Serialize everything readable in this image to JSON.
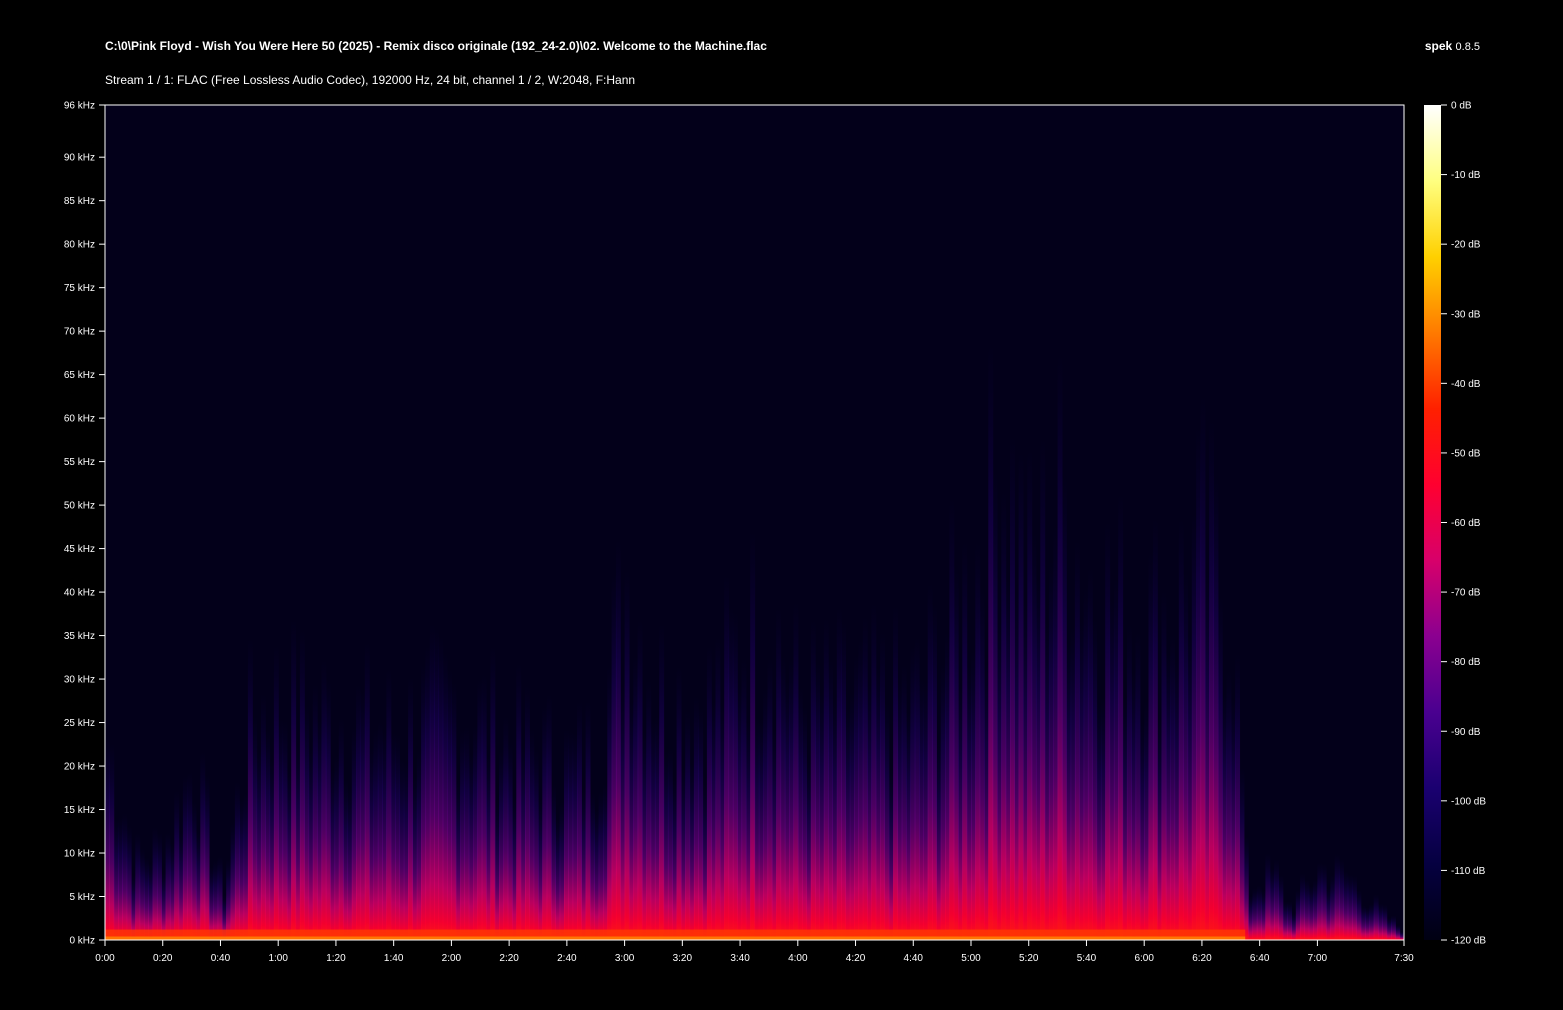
{
  "header": {
    "file_path": "C:\\0\\Pink Floyd - Wish You Were Here 50 (2025) - Remix disco originale (192_24-2.0)\\02. Welcome to the Machine.flac",
    "stream_info": "Stream 1 / 1: FLAC (Free Lossless Audio Codec), 192000 Hz, 24 bit, channel 1 / 2, W:2048, F:Hann",
    "app_name": "spek",
    "app_version": "0.8.5"
  },
  "colors": {
    "background": "#000000",
    "plot_base": "#03001a",
    "axis": "#ffffff"
  },
  "chart_data": {
    "type": "heatmap",
    "x_axis": {
      "range_seconds": [
        0,
        450
      ],
      "ticks": [
        "0:00",
        "0:20",
        "0:40",
        "1:00",
        "1:20",
        "1:40",
        "2:00",
        "2:20",
        "2:40",
        "3:00",
        "3:20",
        "3:40",
        "4:00",
        "4:20",
        "4:40",
        "5:00",
        "5:20",
        "5:40",
        "6:00",
        "6:20",
        "6:40",
        "7:00",
        "7:30"
      ],
      "tick_seconds": [
        0,
        20,
        40,
        60,
        80,
        100,
        120,
        140,
        160,
        180,
        200,
        220,
        240,
        260,
        280,
        300,
        320,
        340,
        360,
        380,
        400,
        420,
        450
      ]
    },
    "y_axis": {
      "range_khz": [
        0,
        96
      ],
      "ticks": [
        "0 kHz",
        "5 kHz",
        "10 kHz",
        "15 kHz",
        "20 kHz",
        "25 kHz",
        "30 kHz",
        "35 kHz",
        "40 kHz",
        "45 kHz",
        "50 kHz",
        "55 kHz",
        "60 kHz",
        "65 kHz",
        "70 kHz",
        "75 kHz",
        "80 kHz",
        "85 kHz",
        "90 kHz",
        "96 kHz"
      ],
      "tick_khz": [
        0,
        5,
        10,
        15,
        20,
        25,
        30,
        35,
        40,
        45,
        50,
        55,
        60,
        65,
        70,
        75,
        80,
        85,
        90,
        96
      ]
    },
    "color_scale": {
      "range_db": [
        -120,
        0
      ],
      "ticks": [
        "0 dB",
        "-10 dB",
        "-20 dB",
        "-30 dB",
        "-40 dB",
        "-50 dB",
        "-60 dB",
        "-70 dB",
        "-80 dB",
        "-90 dB",
        "-100 dB",
        "-110 dB",
        "-120 dB"
      ],
      "tick_db": [
        0,
        -10,
        -20,
        -30,
        -40,
        -50,
        -60,
        -70,
        -80,
        -90,
        -100,
        -110,
        -120
      ],
      "gradient": [
        "#ffffff",
        "#ffff80",
        "#ffd000",
        "#ff7a00",
        "#ff2000",
        "#ff0030",
        "#d8006a",
        "#8b0090",
        "#4a0090",
        "#1a0070",
        "#050040",
        "#000012"
      ]
    },
    "energy_envelope": {
      "description_points_seconds": [
        0,
        10,
        20,
        30,
        40,
        50,
        60,
        80,
        100,
        120,
        140,
        160,
        170,
        180,
        190,
        200,
        210,
        220,
        230,
        240,
        260,
        280,
        300,
        310,
        320,
        330,
        340,
        350,
        360,
        370,
        380,
        390,
        395,
        400,
        405,
        410,
        420,
        430,
        440,
        450
      ],
      "max_freq_khz": [
        25,
        10,
        12,
        22,
        6,
        28,
        30,
        28,
        26,
        30,
        25,
        22,
        24,
        45,
        32,
        30,
        30,
        38,
        40,
        30,
        30,
        30,
        45,
        60,
        45,
        55,
        45,
        42,
        40,
        42,
        50,
        40,
        6,
        8,
        8,
        4,
        9,
        8,
        4,
        1
      ]
    }
  }
}
